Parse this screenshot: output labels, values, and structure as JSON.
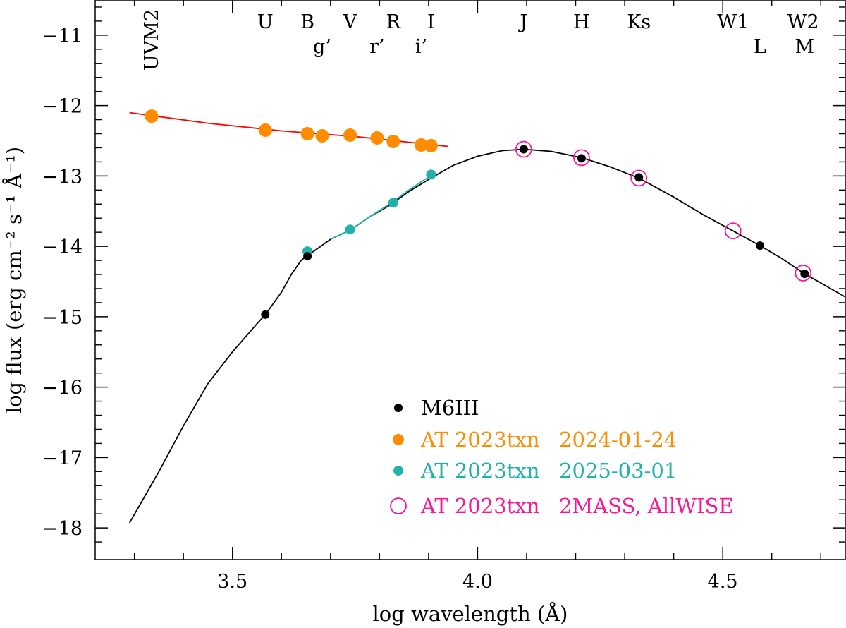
{
  "chart_data": {
    "type": "scatter",
    "xlabel": "log wavelength (Å)",
    "ylabel": "log flux (erg cm⁻² s⁻¹ Å⁻¹)",
    "xlim": [
      3.22,
      4.75
    ],
    "ylim": [
      -18.45,
      -10.5
    ],
    "x_ticks": [
      3.5,
      4.0,
      4.5
    ],
    "x_tick_labels": [
      "3.5",
      "4.0",
      "4.5"
    ],
    "y_ticks": [
      -11,
      -12,
      -13,
      -14,
      -15,
      -16,
      -17,
      -18
    ],
    "y_tick_labels": [
      "−11",
      "−12",
      "−13",
      "−14",
      "−15",
      "−16",
      "−17",
      "−18"
    ],
    "grid": false,
    "legend_position": "lower-center",
    "band_labels_row1": [
      {
        "text": "U",
        "x": 3.567
      },
      {
        "text": "B",
        "x": 3.653
      },
      {
        "text": "V",
        "x": 3.74
      },
      {
        "text": "R",
        "x": 3.828
      },
      {
        "text": "I",
        "x": 3.905
      },
      {
        "text": "J",
        "x": 4.094
      },
      {
        "text": "H",
        "x": 4.212
      },
      {
        "text": "Ks",
        "x": 4.329
      },
      {
        "text": "W1",
        "x": 4.521
      },
      {
        "text": "W2",
        "x": 4.664
      }
    ],
    "band_labels_row2": [
      {
        "text": "g’",
        "x": 3.683
      },
      {
        "text": "r’",
        "x": 3.795
      },
      {
        "text": "i’",
        "x": 3.885
      },
      {
        "text": "L",
        "x": 4.576
      },
      {
        "text": "M",
        "x": 4.667
      }
    ],
    "band_label_vertical": {
      "text": "UVM2",
      "x": 3.335
    },
    "series": [
      {
        "name": "M6III",
        "marker": "filled-circle-small",
        "color": "#000000",
        "points": [
          [
            3.567,
            -14.97
          ],
          [
            3.653,
            -14.14
          ],
          [
            4.094,
            -12.62
          ],
          [
            4.212,
            -12.75
          ],
          [
            4.329,
            -13.02
          ],
          [
            4.576,
            -13.99
          ],
          [
            4.667,
            -14.39
          ]
        ]
      },
      {
        "name": "AT 2023txn   2024-01-24",
        "marker": "filled-circle-large",
        "color": "#ff8c00",
        "points": [
          [
            3.335,
            -12.15
          ],
          [
            3.567,
            -12.35
          ],
          [
            3.653,
            -12.4
          ],
          [
            3.683,
            -12.43
          ],
          [
            3.74,
            -12.42
          ],
          [
            3.795,
            -12.46
          ],
          [
            3.828,
            -12.51
          ],
          [
            3.885,
            -12.56
          ],
          [
            3.905,
            -12.57
          ]
        ]
      },
      {
        "name": "AT 2023txn   2025-03-01",
        "marker": "filled-circle-medium",
        "color": "#20b2aa",
        "points": [
          [
            3.653,
            -14.07
          ],
          [
            3.74,
            -13.76
          ],
          [
            3.828,
            -13.38
          ],
          [
            3.905,
            -12.98
          ]
        ]
      },
      {
        "name": "AT 2023txn   2MASS, AllWISE",
        "marker": "open-circle",
        "color": "#ff1493",
        "points": [
          [
            4.094,
            -12.62
          ],
          [
            4.212,
            -12.74
          ],
          [
            4.329,
            -13.03
          ],
          [
            4.521,
            -13.78
          ],
          [
            4.664,
            -14.38
          ]
        ]
      }
    ],
    "curves": [
      {
        "role": "M6III template spectrum",
        "color": "#000000",
        "points": [
          [
            3.29,
            -17.93
          ],
          [
            3.35,
            -17.2
          ],
          [
            3.4,
            -16.55
          ],
          [
            3.45,
            -15.95
          ],
          [
            3.5,
            -15.5
          ],
          [
            3.55,
            -15.1
          ],
          [
            3.567,
            -14.97
          ],
          [
            3.6,
            -14.65
          ],
          [
            3.62,
            -14.4
          ],
          [
            3.64,
            -14.2
          ],
          [
            3.653,
            -14.13
          ],
          [
            3.68,
            -14.0
          ],
          [
            3.7,
            -13.9
          ],
          [
            3.74,
            -13.77
          ],
          [
            3.78,
            -13.58
          ],
          [
            3.82,
            -13.42
          ],
          [
            3.86,
            -13.22
          ],
          [
            3.9,
            -13.05
          ],
          [
            3.95,
            -12.85
          ],
          [
            4.0,
            -12.72
          ],
          [
            4.05,
            -12.64
          ],
          [
            4.094,
            -12.62
          ],
          [
            4.15,
            -12.65
          ],
          [
            4.212,
            -12.74
          ],
          [
            4.27,
            -12.87
          ],
          [
            4.329,
            -13.03
          ],
          [
            4.4,
            -13.3
          ],
          [
            4.46,
            -13.55
          ],
          [
            4.521,
            -13.78
          ],
          [
            4.576,
            -13.99
          ],
          [
            4.62,
            -14.17
          ],
          [
            4.667,
            -14.39
          ],
          [
            4.7,
            -14.52
          ],
          [
            4.75,
            -14.72
          ]
        ]
      },
      {
        "role": "fit to 2024-01-24",
        "color": "#ff0000",
        "points": [
          [
            3.29,
            -12.1
          ],
          [
            3.45,
            -12.25
          ],
          [
            3.6,
            -12.36
          ],
          [
            3.75,
            -12.44
          ],
          [
            3.94,
            -12.58
          ]
        ]
      },
      {
        "role": "fit to 2025-03-01",
        "color": "#20b2aa",
        "points": [
          [
            3.7,
            -13.9
          ],
          [
            3.74,
            -13.77
          ],
          [
            3.78,
            -13.58
          ],
          [
            3.82,
            -13.4
          ],
          [
            3.86,
            -13.2
          ],
          [
            3.905,
            -12.99
          ]
        ]
      }
    ]
  }
}
